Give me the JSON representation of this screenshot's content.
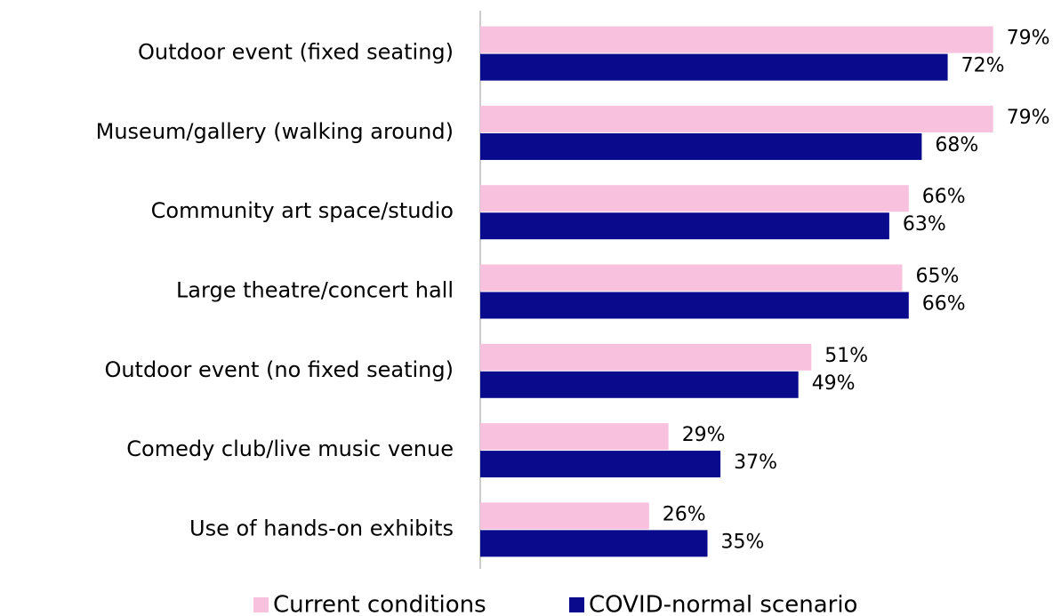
{
  "chart_data": {
    "type": "bar",
    "orientation": "horizontal",
    "categories": [
      "Outdoor event (fixed seating)",
      "Museum/gallery (walking around)",
      "Community art space/studio",
      "Large theatre/concert hall",
      "Outdoor event (no fixed seating)",
      "Comedy club/live music venue",
      "Use of hands-on exhibits"
    ],
    "series": [
      {
        "name": "Current conditions",
        "color": "#f8c1dd",
        "values": [
          79,
          79,
          66,
          65,
          51,
          29,
          26
        ],
        "value_labels": [
          "79%",
          "79%",
          "66%",
          "65%",
          "51%",
          "29%",
          "26%"
        ]
      },
      {
        "name": "COVID-normal scenario",
        "color": "#0a0a8c",
        "values": [
          72,
          68,
          63,
          66,
          49,
          37,
          35
        ],
        "value_labels": [
          "72%",
          "68%",
          "63%",
          "66%",
          "49%",
          "37%",
          "35%"
        ]
      }
    ],
    "xlim": [
      0,
      80
    ],
    "legend": "bottom"
  }
}
